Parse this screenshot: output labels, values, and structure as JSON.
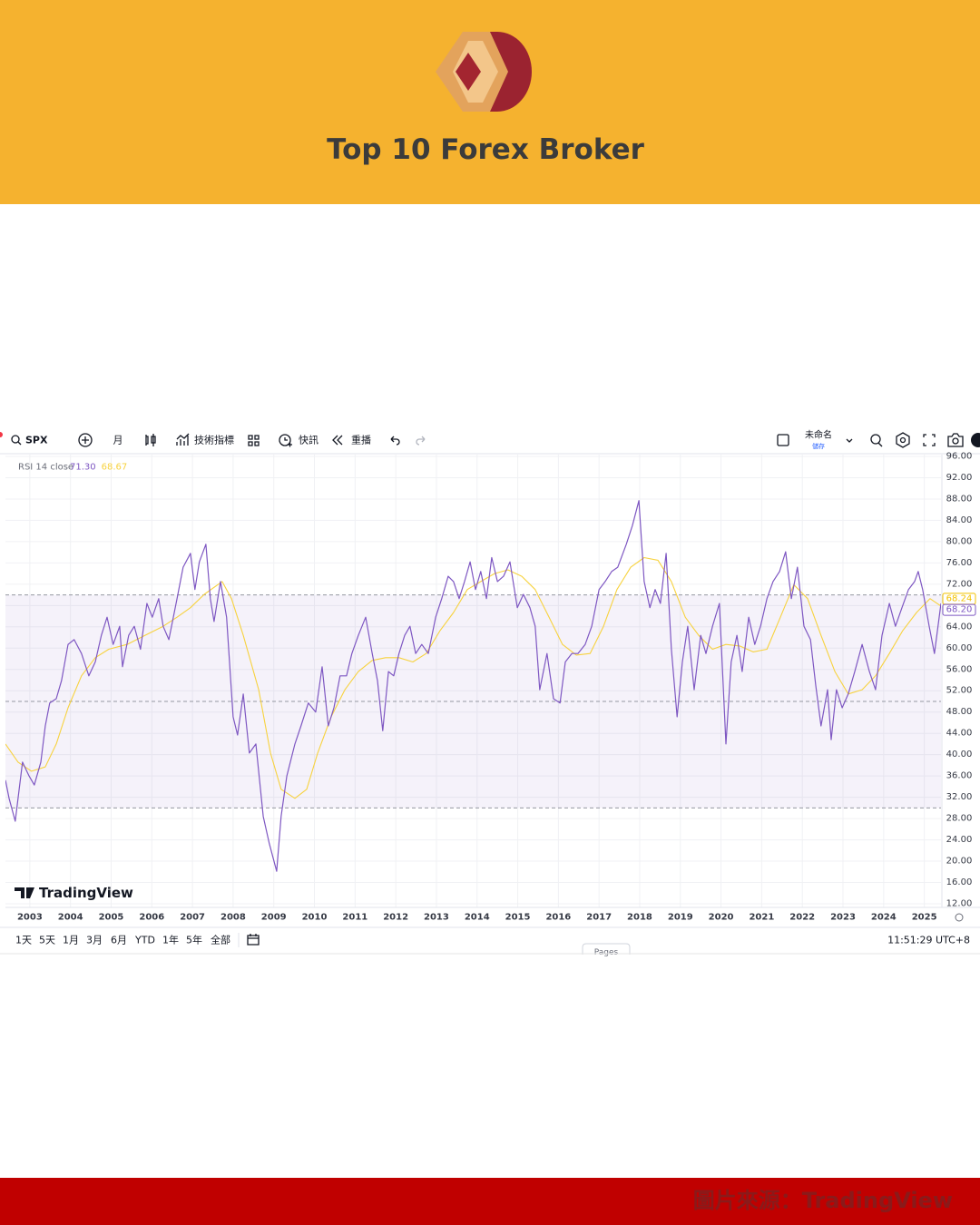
{
  "header": {
    "title": "Top 10 Forex Broker"
  },
  "toolbar": {
    "symbol": "SPX",
    "interval": "月",
    "indicators": "技術指標",
    "alerts": "快訊",
    "replay": "重播",
    "layout_name": "未命名",
    "save": "儲存"
  },
  "chart_data": {
    "type": "line",
    "legend_title": "RSI 14 close",
    "legend_values": [
      {
        "value": 71.3,
        "label": "71.30"
      },
      {
        "value": 68.67,
        "label": "68.67"
      }
    ],
    "watermark": "TradingView",
    "xlim": [
      2002.4,
      2025.41
    ],
    "xticks": [
      2003,
      2004,
      2005,
      2006,
      2007,
      2008,
      2009,
      2010,
      2011,
      2012,
      2013,
      2014,
      2015,
      2016,
      2017,
      2018,
      2019,
      2020,
      2021,
      2022,
      2023,
      2024,
      2025
    ],
    "ylim": [
      12,
      96
    ],
    "yticks": [
      {
        "value": 12,
        "label": "12.00"
      },
      {
        "value": 16,
        "label": "16.00"
      },
      {
        "value": 20,
        "label": "20.00"
      },
      {
        "value": 24,
        "label": "24.00"
      },
      {
        "value": 28,
        "label": "28.00"
      },
      {
        "value": 32,
        "label": "32.00"
      },
      {
        "value": 36,
        "label": "36.00"
      },
      {
        "value": 40,
        "label": "40.00"
      },
      {
        "value": 44,
        "label": "44.00"
      },
      {
        "value": 48,
        "label": "48.00"
      },
      {
        "value": 52,
        "label": "52.00"
      },
      {
        "value": 56,
        "label": "56.00"
      },
      {
        "value": 60,
        "label": "60.00"
      },
      {
        "value": 64,
        "label": "64.00"
      },
      {
        "value": 68,
        "label": "68.00"
      },
      {
        "value": 72,
        "label": "72.00"
      },
      {
        "value": 76,
        "label": "76.00"
      },
      {
        "value": 80,
        "label": "80.00"
      },
      {
        "value": 84,
        "label": "84.00"
      },
      {
        "value": 88,
        "label": "88.00"
      },
      {
        "value": 92,
        "label": "92.00"
      },
      {
        "value": 96,
        "label": "96.00"
      }
    ],
    "grid": true,
    "bands": [
      30,
      50,
      70
    ],
    "band_fill": "#7e57c2",
    "price_tags": [
      {
        "value": 68.24,
        "label": "68.24",
        "color": "#f2c200"
      },
      {
        "value": 68.2,
        "label": "68.20",
        "color": "#7e57c2"
      }
    ],
    "series": [
      {
        "color": "#7e57c2",
        "x": [
          2002.4,
          2002.49,
          2002.64,
          2002.82,
          2002.98,
          2003.11,
          2003.27,
          2003.38,
          2003.49,
          2003.65,
          2003.78,
          2003.94,
          2004.09,
          2004.27,
          2004.45,
          2004.61,
          2004.76,
          2004.9,
          2005.05,
          2005.21,
          2005.28,
          2005.43,
          2005.57,
          2005.72,
          2005.88,
          2006.01,
          2006.17,
          2006.28,
          2006.42,
          2006.62,
          2006.77,
          2006.95,
          2007.06,
          2007.17,
          2007.33,
          2007.44,
          2007.53,
          2007.69,
          2007.84,
          2008.0,
          2008.11,
          2008.25,
          2008.4,
          2008.56,
          2008.74,
          2008.89,
          2009.07,
          2009.18,
          2009.32,
          2009.52,
          2009.67,
          2009.85,
          2010.03,
          2010.19,
          2010.34,
          2010.48,
          2010.63,
          2010.79,
          2010.92,
          2011.08,
          2011.26,
          2011.42,
          2011.55,
          2011.68,
          2011.82,
          2011.95,
          2012.08,
          2012.22,
          2012.35,
          2012.49,
          2012.64,
          2012.8,
          2012.98,
          2013.13,
          2013.29,
          2013.42,
          2013.56,
          2013.69,
          2013.83,
          2013.96,
          2014.09,
          2014.23,
          2014.36,
          2014.5,
          2014.65,
          2014.81,
          2014.99,
          2015.14,
          2015.3,
          2015.43,
          2015.54,
          2015.72,
          2015.88,
          2016.04,
          2016.17,
          2016.33,
          2016.48,
          2016.66,
          2016.82,
          2017.0,
          2017.15,
          2017.31,
          2017.46,
          2017.67,
          2017.82,
          2017.98,
          2018.11,
          2018.25,
          2018.38,
          2018.51,
          2018.65,
          2018.78,
          2018.92,
          2019.05,
          2019.18,
          2019.34,
          2019.5,
          2019.63,
          2019.79,
          2019.96,
          2020.12,
          2020.25,
          2020.39,
          2020.52,
          2020.68,
          2020.83,
          2020.97,
          2021.13,
          2021.28,
          2021.44,
          2021.59,
          2021.73,
          2021.88,
          2022.04,
          2022.2,
          2022.33,
          2022.46,
          2022.62,
          2022.71,
          2022.84,
          2022.98,
          2023.13,
          2023.29,
          2023.47,
          2023.65,
          2023.8,
          2023.96,
          2024.14,
          2024.29,
          2024.45,
          2024.61,
          2024.76,
          2024.85,
          2024.96,
          2025.12,
          2025.25,
          2025.41
        ],
        "values": [
          35.2,
          31.8,
          27.5,
          38.6,
          36,
          34.3,
          38.6,
          45.4,
          49.7,
          50.5,
          53.9,
          60.7,
          61.6,
          59,
          54.8,
          57.4,
          62.4,
          65.8,
          60.7,
          64.1,
          56.5,
          62.4,
          64.1,
          59.8,
          68.4,
          65.8,
          69.3,
          64.1,
          61.6,
          69.3,
          75.2,
          77.8,
          71,
          76.2,
          79.5,
          69.3,
          65,
          72.5,
          65.8,
          47.1,
          43.7,
          51.4,
          40.3,
          42,
          28.4,
          23.3,
          18.1,
          28.4,
          36,
          42,
          45.4,
          49.7,
          48,
          56.5,
          45.4,
          48.8,
          54.8,
          54.8,
          59,
          62.4,
          65.8,
          59,
          53.9,
          44.5,
          55.6,
          54.8,
          59,
          62.4,
          64.1,
          59,
          60.7,
          59,
          65.8,
          69.3,
          73.5,
          72.5,
          69.3,
          72.5,
          76.2,
          71,
          74.4,
          69.3,
          77,
          72.5,
          73.5,
          76.2,
          67.6,
          70.1,
          67.6,
          64.1,
          52.2,
          59,
          50.5,
          49.7,
          57.4,
          59,
          59,
          60.7,
          64.1,
          71,
          72.5,
          74.4,
          75.2,
          79.5,
          83,
          87.7,
          72.5,
          67.6,
          71,
          68.4,
          77.8,
          59.8,
          47.1,
          57.4,
          64.1,
          52.2,
          62.4,
          59,
          64.1,
          68.4,
          42,
          57.4,
          62.4,
          55.6,
          65.8,
          60.7,
          64.1,
          69.3,
          72.5,
          74.4,
          78.1,
          69.3,
          75.2,
          64.1,
          61.6,
          53,
          45.4,
          52.2,
          42.8,
          52.2,
          48.8,
          51.4,
          55.6,
          60.7,
          55.6,
          52.2,
          62.4,
          68.4,
          64.1,
          67.6,
          71,
          72.5,
          74.4,
          71,
          64.1,
          59,
          68.4
        ]
      },
      {
        "color": "#f7d23e",
        "x": [
          2002.4,
          2002.71,
          2003.04,
          2003.38,
          2003.65,
          2003.94,
          2004.27,
          2004.61,
          2004.94,
          2005.39,
          2005.83,
          2006.28,
          2006.62,
          2006.95,
          2007.29,
          2007.73,
          2007.96,
          2008.25,
          2008.63,
          2008.92,
          2009.18,
          2009.52,
          2009.81,
          2010.08,
          2010.41,
          2010.75,
          2011.08,
          2011.42,
          2011.75,
          2012.08,
          2012.42,
          2012.75,
          2013.09,
          2013.42,
          2013.76,
          2014.09,
          2014.43,
          2014.76,
          2015.1,
          2015.43,
          2015.77,
          2016.1,
          2016.44,
          2016.78,
          2017.11,
          2017.44,
          2017.78,
          2018.11,
          2018.45,
          2018.78,
          2019.12,
          2019.45,
          2019.79,
          2020.12,
          2020.46,
          2020.79,
          2021.13,
          2021.46,
          2021.79,
          2022.13,
          2022.46,
          2022.8,
          2023.13,
          2023.47,
          2023.8,
          2024.14,
          2024.47,
          2024.81,
          2025.14,
          2025.41
        ],
        "values": [
          42,
          38.6,
          36.9,
          37.7,
          42,
          48.8,
          54.8,
          58.2,
          59.8,
          60.7,
          62.4,
          64.1,
          65.8,
          67.6,
          70.1,
          72.5,
          69.3,
          62.4,
          52.2,
          40.3,
          33.5,
          31.8,
          33.5,
          40.3,
          47.1,
          52.2,
          55.6,
          57.7,
          58.2,
          58.2,
          57.4,
          59,
          63.3,
          66.7,
          71,
          72.5,
          74,
          74.7,
          73.5,
          71,
          65.8,
          60.7,
          58.7,
          59,
          64.1,
          71,
          75.2,
          77,
          76.5,
          72.5,
          65.8,
          62.4,
          59.8,
          60.7,
          60.4,
          59.3,
          59.8,
          65.8,
          71.9,
          69.3,
          62.4,
          55.6,
          51.4,
          52.2,
          54.8,
          59,
          63.3,
          66.7,
          69.3,
          67.9
        ]
      }
    ]
  },
  "range_bar": {
    "ranges": [
      "1天",
      "5天",
      "1月",
      "3月",
      "6月",
      "YTD",
      "1年",
      "5年",
      "全部"
    ],
    "time": "11:51:29 UTC+8",
    "tab": "Pages"
  },
  "footer": {
    "source": "圖片來源：TradingView"
  }
}
